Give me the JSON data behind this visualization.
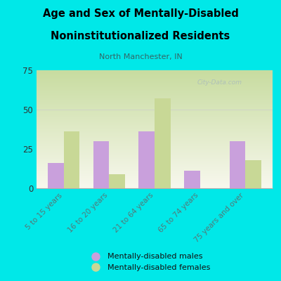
{
  "title_line1": "Age and Sex of Mentally-Disabled",
  "title_line2": "Noninstitutionalized Residents",
  "subtitle": "North Manchester, IN",
  "categories": [
    "5 to 15 years",
    "16 to 20 years",
    "21 to 64 years",
    "65 to 74 years",
    "75 years and over"
  ],
  "males": [
    16,
    30,
    36,
    11,
    30
  ],
  "females": [
    36,
    9,
    57,
    0,
    18
  ],
  "male_color": "#c9a0dc",
  "female_color": "#c8d896",
  "background_color": "#00e8e8",
  "plot_bg_color_top_left": "#c8dca0",
  "plot_bg_color_bottom_right": "#f8f8ee",
  "ylim": [
    0,
    75
  ],
  "yticks": [
    0,
    25,
    50,
    75
  ],
  "bar_width": 0.35,
  "watermark": "City-Data.com",
  "legend_male": "Mentally-disabled males",
  "legend_female": "Mentally-disabled females",
  "subtitle_color": "#336666",
  "tick_label_color": "#557777"
}
